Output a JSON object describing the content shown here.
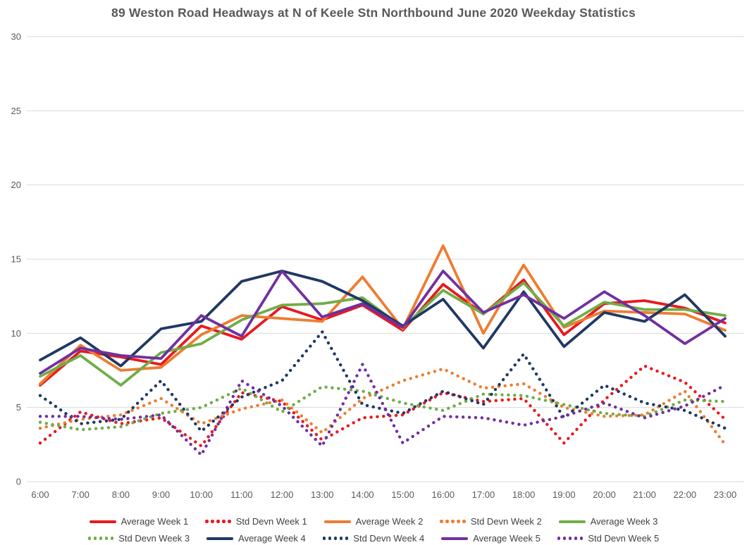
{
  "page": {
    "background": "#FFFFFF"
  },
  "chart_data": {
    "type": "line",
    "title": "89 Weston Road Headways at N of Keele Stn Northbound June 2020 Weekday Statistics",
    "x": [
      "6:00",
      "7:00",
      "8:00",
      "9:00",
      "10:00",
      "11:00",
      "12:00",
      "13:00",
      "14:00",
      "15:00",
      "16:00",
      "17:00",
      "18:00",
      "19:00",
      "20:00",
      "21:00",
      "22:00",
      "23:00"
    ],
    "xlabel": "",
    "ylabel": "",
    "ylim": [
      0,
      30
    ],
    "yticks": [
      0,
      5,
      10,
      15,
      20,
      25,
      30
    ],
    "grid": true,
    "legend_position": "bottom",
    "colors": {
      "week1": "#E8191F",
      "week2": "#ED7D31",
      "week3": "#70AD47",
      "week4": "#1F3864",
      "week5": "#7030A0",
      "gridline": "#D9D9D9",
      "axis_text": "#595959",
      "title_text": "#595959",
      "legend_text": "#404040"
    },
    "series": [
      {
        "name": "Average Week 1",
        "style": "solid",
        "color": "#E8191F",
        "values": [
          6.5,
          8.8,
          8.4,
          7.9,
          10.5,
          9.6,
          11.8,
          10.9,
          11.9,
          10.2,
          13.3,
          11.3,
          13.6,
          9.9,
          12.0,
          12.2,
          11.7,
          10.7
        ]
      },
      {
        "name": "Std Devn Week 1",
        "style": "dotted",
        "color": "#E8191F",
        "values": [
          2.6,
          4.7,
          3.9,
          4.3,
          2.4,
          6.0,
          5.4,
          2.8,
          4.3,
          4.5,
          6.0,
          5.4,
          5.6,
          2.6,
          5.5,
          7.8,
          6.7,
          4.2
        ]
      },
      {
        "name": "Average Week 2",
        "style": "solid",
        "color": "#ED7D31",
        "values": [
          6.6,
          9.2,
          7.5,
          7.7,
          9.9,
          11.2,
          11.0,
          10.8,
          13.8,
          10.3,
          15.9,
          10.0,
          14.6,
          10.4,
          11.5,
          11.4,
          11.3,
          10.2
        ]
      },
      {
        "name": "Std Devn Week 2",
        "style": "dotted",
        "color": "#ED7D31",
        "values": [
          3.6,
          4.2,
          4.5,
          5.6,
          3.9,
          4.9,
          5.5,
          3.3,
          5.6,
          6.8,
          7.6,
          6.3,
          6.6,
          5.0,
          4.4,
          4.5,
          6.1,
          2.5
        ]
      },
      {
        "name": "Average Week 3",
        "style": "solid",
        "color": "#70AD47",
        "values": [
          7.1,
          8.5,
          6.5,
          8.7,
          9.3,
          10.9,
          11.9,
          12.0,
          12.4,
          10.4,
          12.9,
          11.3,
          13.4,
          10.5,
          12.1,
          11.6,
          11.6,
          11.2
        ]
      },
      {
        "name": "Std Devn Week 3",
        "style": "dotted",
        "color": "#70AD47",
        "values": [
          4.0,
          3.5,
          3.7,
          4.6,
          5.0,
          6.3,
          4.7,
          6.4,
          6.1,
          5.3,
          4.8,
          5.9,
          5.8,
          5.2,
          4.6,
          4.4,
          5.5,
          5.4
        ]
      },
      {
        "name": "Average Week 4",
        "style": "solid",
        "color": "#1F3864",
        "values": [
          8.2,
          9.7,
          7.8,
          10.3,
          10.8,
          13.5,
          14.2,
          13.5,
          12.2,
          10.5,
          12.3,
          9.0,
          12.8,
          9.1,
          11.4,
          10.8,
          12.6,
          9.8
        ]
      },
      {
        "name": "Std Devn Week 4",
        "style": "dotted",
        "color": "#1F3864",
        "values": [
          5.8,
          3.9,
          4.2,
          6.8,
          3.4,
          5.7,
          6.8,
          10.1,
          5.2,
          4.6,
          6.1,
          5.2,
          8.6,
          4.3,
          6.5,
          5.3,
          4.8,
          3.6
        ]
      },
      {
        "name": "Average Week 5",
        "style": "solid",
        "color": "#7030A0",
        "values": [
          7.3,
          9.0,
          8.5,
          8.3,
          11.2,
          9.8,
          14.2,
          11.1,
          12.0,
          10.4,
          14.2,
          11.4,
          12.6,
          11.0,
          12.8,
          11.2,
          9.3,
          11.0
        ]
      },
      {
        "name": "Std Devn Week 5",
        "style": "dotted",
        "color": "#7030A0",
        "values": [
          4.4,
          4.4,
          4.2,
          4.5,
          1.8,
          6.8,
          5.1,
          2.4,
          7.9,
          2.6,
          4.4,
          4.3,
          3.8,
          4.4,
          5.3,
          4.3,
          5.1,
          6.5
        ]
      }
    ],
    "legend_rows": [
      [
        "Average Week 1",
        "Std Devn Week 1",
        "Average Week 2",
        "Std Devn Week 2",
        "Average Week 3"
      ],
      [
        "Std Devn Week 3",
        "Average Week 4",
        "Std Devn Week 4",
        "Average Week 5",
        "Std Devn Week 5"
      ]
    ]
  }
}
